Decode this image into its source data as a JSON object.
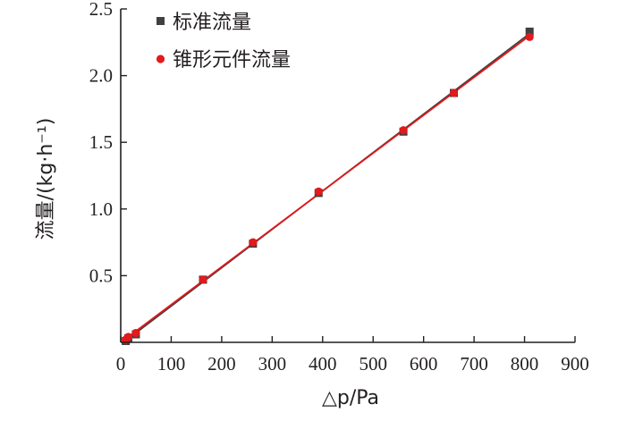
{
  "chart_data": {
    "type": "scatter",
    "x": [
      10,
      15,
      30,
      163,
      262,
      392,
      560,
      660,
      810
    ],
    "series": [
      {
        "name": "标准流量",
        "marker": "square",
        "color": "#404040",
        "values": [
          0.01,
          0.03,
          0.06,
          0.47,
          0.74,
          1.12,
          1.58,
          1.87,
          2.33
        ]
      },
      {
        "name": "锥形元件流量",
        "marker": "circle",
        "color": "#e3191b",
        "values": [
          0.02,
          0.04,
          0.07,
          0.47,
          0.75,
          1.13,
          1.59,
          1.87,
          2.29
        ]
      }
    ],
    "xlim": [
      0,
      900
    ],
    "ylim": [
      0,
      2.5
    ],
    "xticks": [
      "0",
      "100",
      "200",
      "300",
      "400",
      "500",
      "600",
      "700",
      "800",
      "900"
    ],
    "yticks": [
      "0.5",
      "1.0",
      "1.5",
      "2.0",
      "2.5"
    ],
    "xlabel": "△p/Pa",
    "ylabel": "流量/(kg·h⁻¹)",
    "legend_position": "top-left",
    "grid": false
  }
}
